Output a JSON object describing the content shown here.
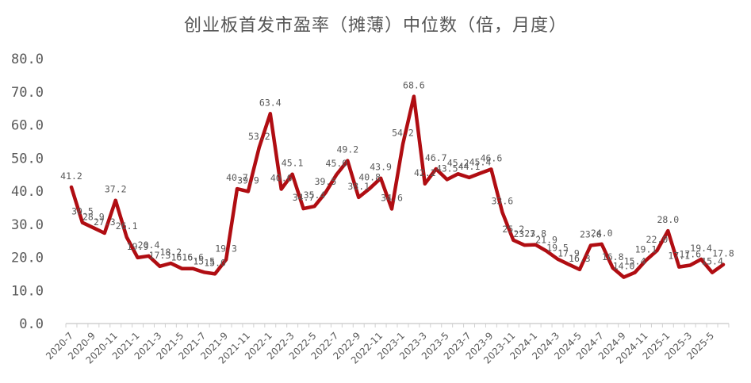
{
  "chart_data": {
    "type": "line",
    "title": "创业板首发市盈率（摊薄）中位数（倍，月度）",
    "xlabel": "",
    "ylabel": "",
    "ylim": [
      0,
      80
    ],
    "yticks": [
      "0.0",
      "10.0",
      "20.0",
      "30.0",
      "40.0",
      "50.0",
      "60.0",
      "70.0",
      "80.0"
    ],
    "grid": false,
    "legend": null,
    "line_color": "#B00D12",
    "x": [
      "2020-7",
      "2020-8",
      "2020-9",
      "2020-10",
      "2020-11",
      "2020-12",
      "2021-1",
      "2021-2",
      "2021-3",
      "2021-4",
      "2021-5",
      "2021-6",
      "2021-7",
      "2021-8",
      "2021-9",
      "2021-10",
      "2021-11",
      "2021-12",
      "2022-1",
      "2022-2",
      "2022-3",
      "2022-4",
      "2022-5",
      "2022-6",
      "2022-7",
      "2022-8",
      "2022-9",
      "2022-10",
      "2022-11",
      "2022-12",
      "2023-1",
      "2023-2",
      "2023-3",
      "2023-4",
      "2023-5",
      "2023-6",
      "2023-7",
      "2023-8",
      "2023-9",
      "2023-10",
      "2023-11",
      "2023-12",
      "2024-1",
      "2024-2",
      "2024-3",
      "2024-4",
      "2024-5",
      "2024-6",
      "2024-7",
      "2024-8",
      "2024-9",
      "2024-10",
      "2024-11",
      "2024-12",
      "2025-1",
      "2025-2",
      "2025-3",
      "2025-4",
      "2025-5",
      "2025-6"
    ],
    "xtick_labels": [
      "2020-7",
      "2020-9",
      "2020-11",
      "2021-1",
      "2021-3",
      "2021-5",
      "2021-7",
      "2021-9",
      "2021-11",
      "2022-1",
      "2022-3",
      "2022-5",
      "2022-7",
      "2022-9",
      "2022-11",
      "2023-1",
      "2023-3",
      "2023-5",
      "2023-7",
      "2023-9",
      "2023-11",
      "2024-1",
      "2024-3",
      "2024-5",
      "2024-7",
      "2024-9",
      "2024-11",
      "2025-1",
      "2025-3",
      "2025-5"
    ],
    "series": [
      {
        "name": "创业板首发市盈率（摊薄）中位数",
        "values": [
          41.2,
          30.5,
          28.9,
          27.3,
          37.2,
          26.1,
          19.9,
          20.4,
          17.3,
          18.2,
          16.6,
          16.6,
          15.5,
          15.0,
          19.3,
          40.7,
          39.9,
          53.2,
          63.4,
          40.6,
          45.1,
          34.7,
          35.4,
          39.5,
          45.0,
          49.2,
          38.1,
          40.8,
          43.9,
          34.6,
          54.2,
          68.6,
          42.2,
          46.7,
          43.5,
          45.2,
          44.1,
          45.4,
          46.6,
          33.6,
          25.2,
          23.7,
          23.8,
          21.9,
          19.5,
          17.9,
          16.3,
          23.6,
          24.0,
          16.8,
          14.0,
          15.4,
          19.1,
          22.0,
          28.0,
          17.1,
          17.6,
          19.4,
          15.4,
          17.8
        ]
      }
    ]
  }
}
